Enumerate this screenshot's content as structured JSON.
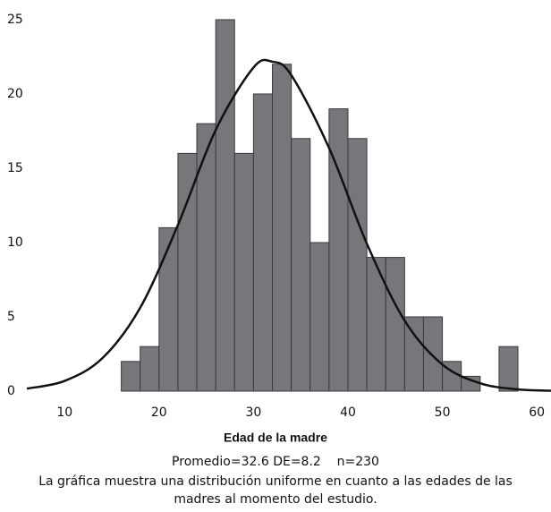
{
  "chart_data": {
    "type": "histogram",
    "bins": [
      16,
      18,
      20,
      22,
      24,
      26,
      28,
      30,
      32,
      34,
      36,
      38,
      40,
      42,
      44,
      46,
      48,
      50,
      52,
      54,
      56,
      58
    ],
    "values": [
      2,
      3,
      11,
      16,
      18,
      25,
      16,
      20,
      22,
      17,
      10,
      19,
      17,
      9,
      9,
      5,
      5,
      2,
      1,
      0,
      3
    ],
    "color": "#77777b",
    "curve": {
      "x": [
        6,
        10,
        14,
        18,
        22,
        26,
        30,
        32,
        34,
        38,
        42,
        46,
        50,
        54,
        58,
        61.5
      ],
      "y": [
        0.17,
        0.69,
        2.22,
        5.61,
        11.19,
        17.58,
        21.78,
        22.17,
        21.27,
        16.37,
        9.93,
        4.75,
        1.79,
        0.53,
        0.12,
        0.03
      ],
      "color": "#111111"
    },
    "xlabel": "Edad de la madre",
    "annotation": "Promedio=32.6 DE=8.2    n=230",
    "caption": [
      "La gráfica muestra una distribución uniforme en cuanto a las edades de las",
      "madres al momento del estudio."
    ],
    "xlim": [
      6,
      61.5
    ],
    "ylim": [
      0,
      25.3
    ],
    "xticks": [
      10,
      20,
      30,
      40,
      50,
      60
    ],
    "yticks": [
      0,
      5,
      10,
      15,
      20,
      25
    ],
    "grid": false
  }
}
